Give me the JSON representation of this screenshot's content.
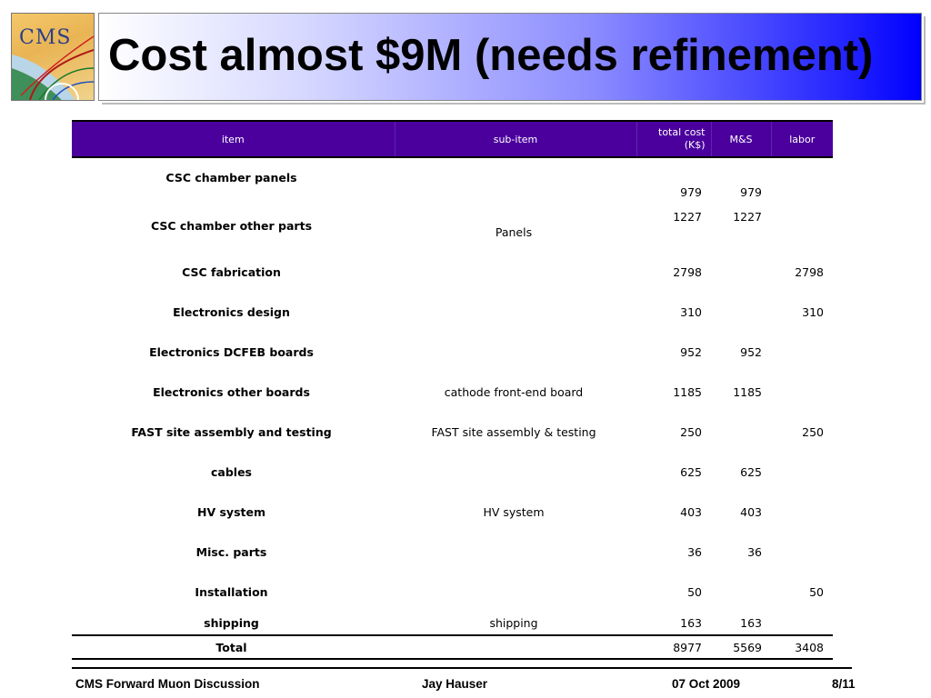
{
  "logo": {
    "text": "CMS"
  },
  "title": "Cost almost $9M (needs refinement)",
  "table": {
    "headers": {
      "item": "item",
      "sub_item": "sub-item",
      "total_line1": "total cost",
      "total_line2": "(K$)",
      "ms": "M&S",
      "labor": "labor"
    },
    "rows": [
      {
        "item": "CSC chamber panels",
        "sub": "",
        "total": "979",
        "ms": "979",
        "labor": ""
      },
      {
        "item": "CSC chamber other parts",
        "sub": "Panels",
        "total": "1227",
        "ms": "1227",
        "labor": ""
      },
      {
        "item": "CSC fabrication",
        "sub": "",
        "total": "2798",
        "ms": "",
        "labor": "2798"
      },
      {
        "item": "Electronics design",
        "sub": "",
        "total": "310",
        "ms": "",
        "labor": "310"
      },
      {
        "item": "Electronics DCFEB boards",
        "sub": "",
        "total": "952",
        "ms": "952",
        "labor": ""
      },
      {
        "item": "Electronics other boards",
        "sub": "cathode front-end board",
        "total": "1185",
        "ms": "1185",
        "labor": ""
      },
      {
        "item": "FAST site assembly and testing",
        "sub": "FAST site assembly & testing",
        "total": "250",
        "ms": "",
        "labor": "250"
      },
      {
        "item": "cables",
        "sub": "",
        "total": "625",
        "ms": "625",
        "labor": ""
      },
      {
        "item": "HV system",
        "sub": "HV system",
        "total": "403",
        "ms": "403",
        "labor": ""
      },
      {
        "item": "Misc. parts",
        "sub": "",
        "total": "36",
        "ms": "36",
        "labor": ""
      },
      {
        "item": "Installation",
        "sub": "",
        "total": "50",
        "ms": "",
        "labor": "50"
      },
      {
        "item": "shipping",
        "sub": "shipping",
        "total": "163",
        "ms": "163",
        "labor": ""
      }
    ],
    "total_row": {
      "item": "Total",
      "sub": "",
      "total": "8977",
      "ms": "5569",
      "labor": "3408"
    }
  },
  "footer": {
    "left": "CMS Forward Muon Discussion",
    "author": "Jay Hauser",
    "date": "07 Oct 2009",
    "page": "8/11"
  }
}
